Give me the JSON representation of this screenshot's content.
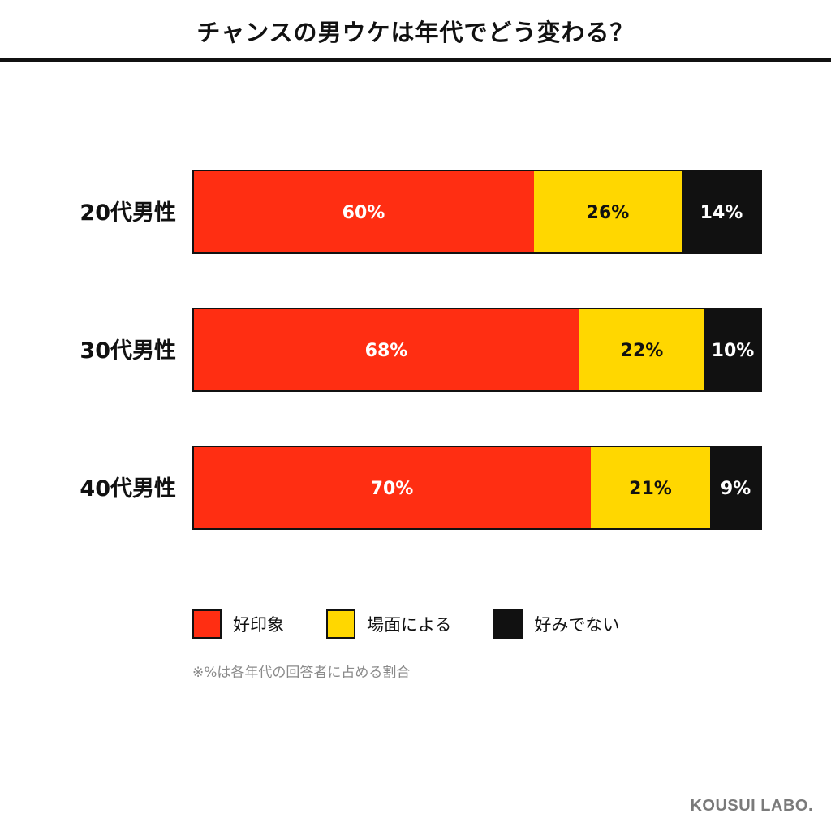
{
  "header": {
    "title": "チャンスの男ウケは年代でどう変わる？"
  },
  "chart_data": {
    "type": "bar",
    "orientation": "horizontal",
    "stacked": true,
    "normalized_percent": true,
    "categories": [
      "20代男性",
      "30代男性",
      "40代男性"
    ],
    "series": [
      {
        "name": "好印象",
        "values": [
          60,
          68,
          70
        ],
        "color": "#ff2e12",
        "label_color": "#ffffff"
      },
      {
        "name": "場面による",
        "values": [
          26,
          22,
          21
        ],
        "color": "#ffd700",
        "label_color": "#111111"
      },
      {
        "name": "好みでない",
        "values": [
          14,
          10,
          9
        ],
        "color": "#111111",
        "label_color": "#ffffff"
      }
    ],
    "value_format": "%",
    "xlim": [
      0,
      100
    ],
    "grid": false,
    "legend_position": "bottom",
    "note": "※%は各年代の回答者に占める割合"
  },
  "legend": {
    "items": [
      {
        "label": "好印象",
        "color": "#ff2e12"
      },
      {
        "label": "場面による",
        "color": "#ffd700"
      },
      {
        "label": "好みでない",
        "color": "#111111"
      }
    ]
  },
  "note": "※%は各年代の回答者に占める割合",
  "brand": "KOUSUI LABO."
}
